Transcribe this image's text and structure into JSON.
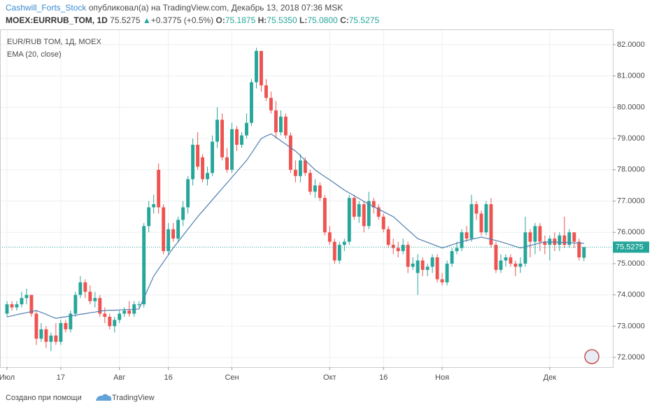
{
  "header": {
    "author": "Cashwill_Forts_Stock",
    "published": "опубликовал(а) на TradingView.com, Декабрь 13, 2018 07:36 MSK",
    "symbol": "MOEX:EURRUB_TOM, 1D",
    "last": "75.5275",
    "arrow": "▲",
    "change": "+0.3775 (+0.5%)",
    "ohlc": [
      {
        "label": "O:",
        "value": "75.1875"
      },
      {
        "label": "H:",
        "value": "75.5350"
      },
      {
        "label": "L:",
        "value": "75.0800"
      },
      {
        "label": "C:",
        "value": "75.5275"
      }
    ]
  },
  "chart_data": {
    "type": "candlestick",
    "title": "EUR/RUB TOM, 1Д, MOEX",
    "up_color": "#26a69a",
    "down_color": "#ef5350",
    "grid": true,
    "xlim": [
      -1.43,
      123.9
    ],
    "ylim": [
      71.69,
      82.49
    ],
    "yticks": [
      {
        "value": 72,
        "label": "72.0000"
      },
      {
        "value": 73,
        "label": "73.0000"
      },
      {
        "value": 74,
        "label": "74.0000"
      },
      {
        "value": 75,
        "label": "75.0000"
      },
      {
        "value": 76,
        "label": "76.0000"
      },
      {
        "value": 77,
        "label": "77.0000"
      },
      {
        "value": 78,
        "label": "78.0000"
      },
      {
        "value": 79,
        "label": "79.0000"
      },
      {
        "value": 80,
        "label": "80.0000"
      },
      {
        "value": 81,
        "label": "81.0000"
      },
      {
        "value": 82,
        "label": "82.0000"
      }
    ],
    "xticks": [
      {
        "value": 0,
        "label": "Июл"
      },
      {
        "value": 11,
        "label": "17"
      },
      {
        "value": 23,
        "label": "Авг"
      },
      {
        "value": 33,
        "label": "16"
      },
      {
        "value": 46,
        "label": "Сен"
      },
      {
        "value": 66,
        "label": "Окт"
      },
      {
        "value": 77,
        "label": "16"
      },
      {
        "value": 89,
        "label": "Ноя"
      },
      {
        "value": 111,
        "label": "Дек"
      }
    ],
    "last_price": {
      "value": 75.5275,
      "label": "75.5275"
    },
    "open": [
      73.4,
      73.7,
      73.6,
      73.7,
      73.9,
      74.0,
      73.4,
      72.6,
      72.9,
      72.5,
      72.7,
      72.5,
      73.1,
      72.9,
      73.4,
      74.0,
      74.4,
      74.1,
      73.8,
      73.9,
      73.4,
      73.3,
      73.0,
      73.2,
      73.4,
      73.5,
      73.4,
      73.7,
      73.7,
      76.2,
      76.8,
      78.0,
      76.8,
      75.4,
      76.1,
      75.8,
      76.4,
      76.8,
      77.7,
      78.8,
      78.4,
      77.7,
      77.9,
      78.9,
      79.6,
      78.4,
      78.0,
      79.3,
      78.8,
      79.1,
      79.5,
      80.8,
      81.8,
      80.7,
      80.3,
      79.9,
      79.2,
      79.7,
      79.1,
      78.0,
      77.8,
      78.3,
      77.9,
      77.3,
      77.5,
      77.1,
      76.0,
      75.7,
      75.1,
      75.6,
      75.7,
      77.1,
      76.5,
      76.9,
      76.2,
      77.0,
      76.8,
      76.5,
      76.1,
      75.6,
      75.5,
      75.4,
      75.6,
      74.9,
      74.7,
      75.1,
      74.8,
      74.9,
      75.2,
      74.5,
      74.4,
      75.0,
      75.4,
      75.5,
      76.0,
      75.8,
      76.9,
      76.6,
      76.0,
      76.9,
      75.6,
      74.8,
      75.1,
      75.2,
      75.0,
      74.9,
      75.0,
      76.0,
      75.7,
      76.2,
      75.7,
      75.6,
      75.8,
      75.6,
      75.9,
      75.6,
      76.0,
      75.7,
      75.1875
    ],
    "high": [
      73.8,
      73.8,
      73.8,
      74.1,
      74.2,
      74.0,
      73.5,
      73.1,
      73.0,
      72.8,
      73.1,
      73.2,
      73.2,
      73.5,
      74.1,
      74.6,
      74.5,
      74.3,
      74.1,
      74.0,
      73.6,
      73.4,
      73.3,
      73.5,
      73.6,
      73.8,
      73.8,
      73.8,
      76.3,
      77.0,
      77.2,
      78.2,
      76.9,
      76.3,
      76.3,
      76.5,
      77.0,
      77.8,
      79.0,
      79.2,
      78.5,
      78.1,
      79.1,
      80.0,
      79.8,
      78.7,
      79.5,
      79.4,
      79.2,
      79.8,
      80.9,
      81.9,
      81.8,
      80.9,
      80.5,
      80.2,
      79.9,
      79.8,
      79.2,
      78.3,
      78.5,
      78.4,
      78.0,
      77.7,
      77.6,
      77.2,
      76.2,
      75.8,
      75.7,
      75.8,
      77.2,
      77.2,
      77.0,
      77.0,
      77.3,
      77.1,
      76.9,
      76.6,
      76.2,
      75.8,
      75.7,
      75.8,
      75.7,
      75.2,
      75.3,
      75.2,
      75.0,
      75.3,
      75.3,
      74.7,
      75.1,
      75.5,
      75.7,
      76.1,
      76.2,
      77.2,
      77.0,
      76.7,
      77.0,
      77.1,
      75.7,
      75.3,
      75.3,
      75.3,
      75.1,
      75.2,
      76.5,
      76.1,
      76.3,
      76.3,
      75.9,
      75.9,
      76.0,
      76.0,
      76.5,
      76.1,
      76.0,
      75.8,
      75.535
    ],
    "low": [
      73.3,
      73.5,
      73.5,
      73.6,
      73.7,
      73.3,
      72.4,
      72.5,
      72.3,
      72.2,
      72.4,
      72.4,
      72.8,
      72.8,
      73.3,
      73.9,
      73.9,
      73.7,
      73.6,
      73.3,
      73.1,
      72.9,
      72.8,
      73.1,
      73.3,
      73.3,
      73.3,
      73.6,
      73.6,
      76.0,
      76.6,
      76.6,
      75.3,
      75.3,
      75.7,
      75.7,
      76.2,
      76.6,
      77.5,
      78.0,
      77.6,
      77.5,
      77.8,
      78.7,
      78.3,
      77.9,
      77.9,
      78.6,
      78.7,
      79.0,
      79.4,
      80.6,
      80.5,
      80.2,
      79.8,
      79.0,
      79.1,
      79.0,
      77.9,
      77.6,
      77.6,
      77.8,
      77.2,
      77.1,
      77.0,
      75.9,
      75.6,
      75.0,
      75.0,
      75.4,
      75.6,
      76.4,
      76.3,
      76.0,
      76.1,
      76.6,
      76.4,
      76.0,
      75.5,
      75.3,
      75.2,
      75.3,
      74.7,
      74.8,
      74.0,
      74.6,
      74.6,
      74.7,
      74.4,
      74.3,
      74.3,
      74.9,
      75.3,
      75.4,
      75.7,
      75.7,
      76.4,
      75.9,
      75.9,
      75.5,
      74.7,
      74.7,
      74.9,
      74.9,
      74.6,
      74.7,
      74.9,
      75.2,
      75.3,
      75.4,
      75.3,
      75.1,
      75.4,
      75.4,
      75.5,
      75.5,
      75.5,
      75.1,
      75.08
    ],
    "close": [
      73.7,
      73.6,
      73.7,
      73.9,
      74.0,
      73.4,
      72.6,
      72.9,
      72.5,
      72.7,
      72.5,
      73.1,
      72.9,
      73.4,
      74.0,
      74.4,
      74.1,
      73.8,
      73.9,
      73.4,
      73.3,
      73.0,
      73.2,
      73.4,
      73.5,
      73.4,
      73.7,
      73.7,
      76.2,
      76.8,
      76.9,
      76.8,
      75.4,
      76.1,
      75.8,
      76.4,
      76.8,
      77.7,
      78.8,
      78.1,
      77.7,
      77.9,
      78.9,
      79.6,
      78.4,
      78.0,
      79.3,
      78.8,
      79.1,
      79.5,
      80.8,
      81.8,
      80.7,
      80.3,
      79.9,
      79.2,
      79.7,
      79.1,
      78.0,
      77.8,
      78.3,
      77.9,
      77.3,
      77.5,
      77.1,
      76.0,
      75.7,
      75.1,
      75.6,
      75.7,
      77.1,
      76.5,
      76.9,
      76.2,
      77.0,
      76.8,
      76.5,
      76.1,
      75.6,
      75.5,
      75.4,
      75.6,
      74.9,
      75.0,
      75.1,
      74.8,
      74.9,
      75.2,
      74.5,
      74.4,
      75.0,
      75.4,
      75.5,
      76.0,
      75.8,
      76.9,
      76.6,
      76.0,
      76.9,
      75.6,
      74.8,
      75.1,
      75.2,
      75.0,
      74.9,
      75.0,
      76.0,
      75.7,
      76.2,
      75.7,
      75.6,
      75.8,
      75.6,
      75.9,
      75.6,
      76.0,
      75.7,
      75.2,
      75.5275
    ],
    "ema": {
      "name": "EMA (20, close)",
      "color": "#4f7fae",
      "values": [
        73.3,
        73.33,
        73.37,
        73.4,
        73.43,
        73.47,
        73.5,
        73.44,
        73.38,
        73.31,
        73.25,
        73.28,
        73.3,
        73.33,
        73.35,
        73.38,
        73.4,
        73.43,
        73.45,
        73.48,
        73.5,
        73.51,
        73.51,
        73.52,
        73.53,
        73.53,
        73.54,
        73.55,
        73.9,
        74.25,
        74.6,
        74.83,
        75.05,
        75.28,
        75.5,
        75.7,
        75.9,
        76.1,
        76.3,
        76.5,
        76.68,
        76.86,
        77.04,
        77.22,
        77.4,
        77.58,
        77.76,
        77.94,
        78.12,
        78.3,
        78.53,
        78.77,
        79.0,
        79.08,
        79.15,
        79.04,
        78.93,
        78.82,
        78.71,
        78.6,
        78.45,
        78.3,
        78.15,
        78.0,
        77.89,
        77.78,
        77.68,
        77.57,
        77.46,
        77.35,
        77.26,
        77.17,
        77.08,
        76.99,
        76.9,
        76.82,
        76.74,
        76.66,
        76.58,
        76.5,
        76.36,
        76.22,
        76.08,
        75.94,
        75.8,
        75.74,
        75.68,
        75.62,
        75.56,
        75.5,
        75.55,
        75.6,
        75.65,
        75.7,
        75.74,
        75.78,
        75.81,
        75.85,
        75.81,
        75.78,
        75.74,
        75.7,
        75.65,
        75.6,
        75.55,
        75.5,
        75.54,
        75.58,
        75.62,
        75.66,
        75.7,
        75.69,
        75.69,
        75.68,
        75.68,
        75.67,
        75.66,
        75.66,
        75.65
      ]
    }
  },
  "footer": {
    "created": "Создано при помощи",
    "brand": "TradingView"
  }
}
